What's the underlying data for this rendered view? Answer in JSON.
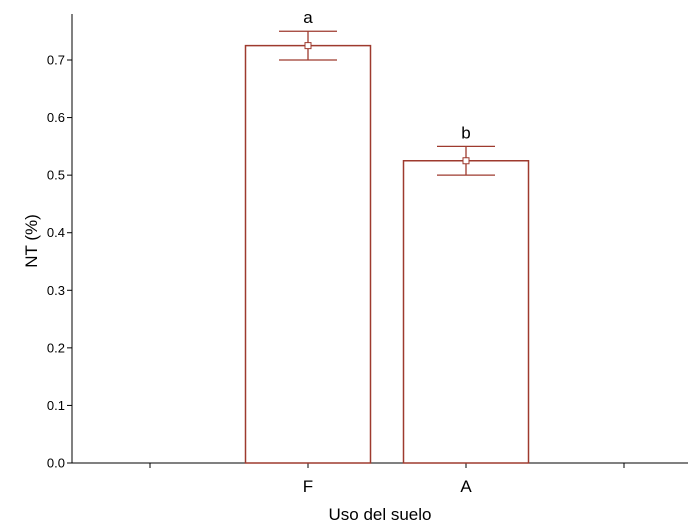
{
  "chart_data": {
    "type": "bar",
    "categories": [
      "F",
      "A"
    ],
    "values": [
      0.725,
      0.525
    ],
    "error_low": [
      0.7,
      0.5
    ],
    "error_high": [
      0.75,
      0.55
    ],
    "annotations": [
      "a",
      "b"
    ],
    "xlabel": "Uso del suelo",
    "ylabel": "NT (%)",
    "ylim": [
      0.0,
      0.78
    ],
    "yticks": [
      0.0,
      0.1,
      0.2,
      0.3,
      0.4,
      0.5,
      0.6,
      0.7
    ],
    "ytick_labels": [
      "0.0",
      "0.1",
      "0.2",
      "0.3",
      "0.4",
      "0.5",
      "0.6",
      "0.7"
    ],
    "grid": false,
    "colors": {
      "bar_stroke": "#9e3a2e",
      "bar_fill": "#ffffff",
      "axis": "#000000"
    }
  }
}
